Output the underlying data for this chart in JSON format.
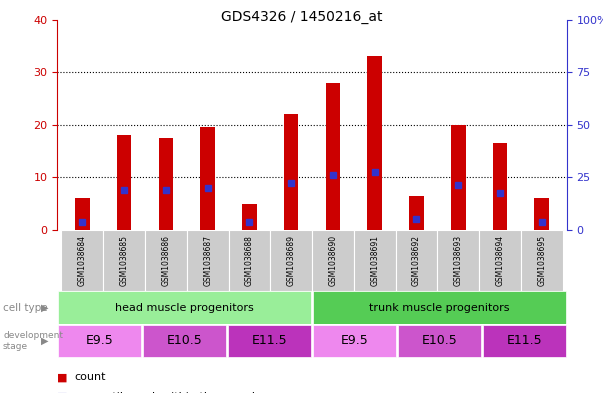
{
  "title": "GDS4326 / 1450216_at",
  "samples": [
    "GSM1038684",
    "GSM1038685",
    "GSM1038686",
    "GSM1038687",
    "GSM1038688",
    "GSM1038689",
    "GSM1038690",
    "GSM1038691",
    "GSM1038692",
    "GSM1038693",
    "GSM1038694",
    "GSM1038695"
  ],
  "count_values": [
    6,
    18,
    17.5,
    19.5,
    5,
    22,
    28,
    33,
    6.5,
    20,
    16.5,
    6
  ],
  "percentile_values": [
    1.5,
    7.5,
    7.5,
    8,
    1.5,
    9,
    10.5,
    11,
    2,
    8.5,
    7,
    1.5
  ],
  "bar_color": "#cc0000",
  "percentile_color": "#3333cc",
  "left_ylim": [
    0,
    40
  ],
  "right_ylim": [
    0,
    100
  ],
  "left_yticks": [
    0,
    10,
    20,
    30,
    40
  ],
  "right_yticks": [
    0,
    25,
    50,
    75,
    100
  ],
  "right_yticklabels": [
    "0",
    "25",
    "50",
    "75",
    "100%"
  ],
  "left_ycolor": "#cc0000",
  "right_ycolor": "#3333cc",
  "cell_types": [
    {
      "label": "head muscle progenitors",
      "span": [
        0,
        6
      ],
      "color": "#99ee99"
    },
    {
      "label": "trunk muscle progenitors",
      "span": [
        6,
        12
      ],
      "color": "#55cc55"
    }
  ],
  "dev_stages": [
    {
      "label": "E9.5",
      "span": [
        0,
        2
      ],
      "color": "#ee88ee"
    },
    {
      "label": "E10.5",
      "span": [
        2,
        4
      ],
      "color": "#cc55cc"
    },
    {
      "label": "E11.5",
      "span": [
        4,
        6
      ],
      "color": "#bb33bb"
    },
    {
      "label": "E9.5",
      "span": [
        6,
        8
      ],
      "color": "#ee88ee"
    },
    {
      "label": "E10.5",
      "span": [
        8,
        10
      ],
      "color": "#cc55cc"
    },
    {
      "label": "E11.5",
      "span": [
        10,
        12
      ],
      "color": "#bb33bb"
    }
  ],
  "bar_width": 0.35,
  "background_color": "#ffffff",
  "grid_color": "#000000",
  "tick_label_color_left": "#cc0000",
  "tick_label_color_right": "#3333cc",
  "legend_count_color": "#cc0000",
  "legend_pct_color": "#3333cc",
  "xlabel_area_color": "#cccccc",
  "left_label_color": "#888888"
}
